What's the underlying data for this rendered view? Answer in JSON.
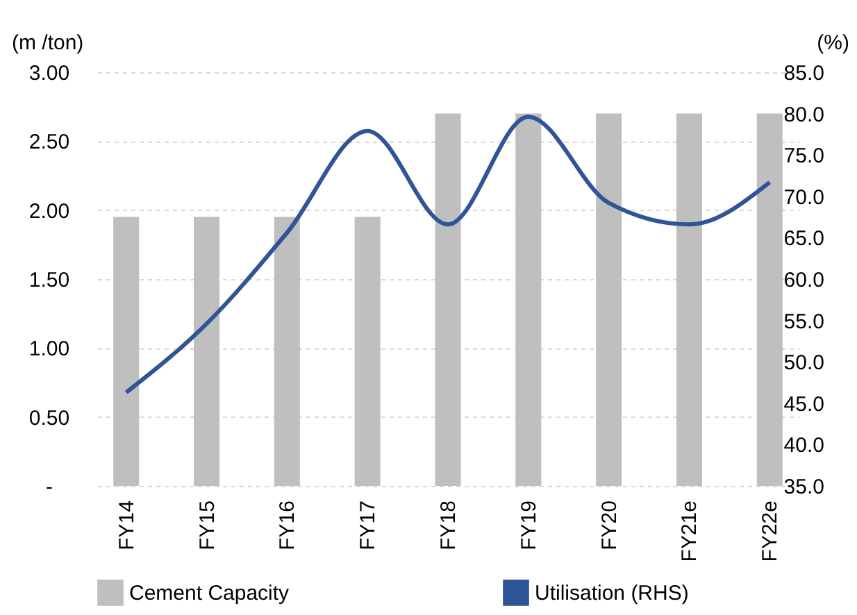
{
  "chart_data": {
    "type": "bar",
    "categories": [
      "FY14",
      "FY15",
      "FY16",
      "FY17",
      "FY18",
      "FY19",
      "FY20",
      "FY21e",
      "FY22e"
    ],
    "series": [
      {
        "name": "Cement Capacity",
        "color": "#bfbfbf",
        "values": [
          1.95,
          1.95,
          1.95,
          1.95,
          2.7,
          2.7,
          2.7,
          2.7,
          2.7
        ]
      },
      {
        "name": "Utilisation (RHS)",
        "type": "line",
        "axis": "y2",
        "color": "#2f5597",
        "values": [
          46.3,
          54.6,
          65.6,
          77.9,
          66.6,
          79.6,
          69.2,
          66.6,
          71.7
        ]
      }
    ],
    "ylabel": "(m /ton)",
    "y2label": "(%)",
    "ylim": [
      0,
      3
    ],
    "yticks": [
      {
        "value": 0,
        "label": "-"
      },
      {
        "value": 0.5,
        "label": "0.50"
      },
      {
        "value": 1,
        "label": "1.00"
      },
      {
        "value": 1.5,
        "label": "1.50"
      },
      {
        "value": 2,
        "label": "2.00"
      },
      {
        "value": 2.5,
        "label": "2.50"
      },
      {
        "value": 3,
        "label": "3.00"
      }
    ],
    "y2lim": [
      35,
      85
    ],
    "y2ticks": [
      {
        "value": 35,
        "label": "35.0"
      },
      {
        "value": 40,
        "label": "40.0"
      },
      {
        "value": 45,
        "label": "45.0"
      },
      {
        "value": 50,
        "label": "50.0"
      },
      {
        "value": 55,
        "label": "55.0"
      },
      {
        "value": 60,
        "label": "60.0"
      },
      {
        "value": 65,
        "label": "65.0"
      },
      {
        "value": 70,
        "label": "70.0"
      },
      {
        "value": 75,
        "label": "75.0"
      },
      {
        "value": 80,
        "label": "80.0"
      },
      {
        "value": 85,
        "label": "85.0"
      }
    ],
    "grid": "y",
    "legend": "bottom",
    "marker": "none",
    "line_style": "solid"
  }
}
